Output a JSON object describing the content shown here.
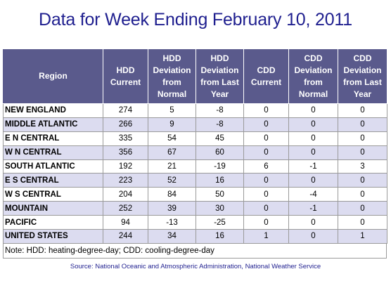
{
  "title": "Data for Week Ending February 10, 2011",
  "table": {
    "headers": [
      "Region",
      "HDD Current",
      "HDD Deviation from Normal",
      "HDD Deviation from Last Year",
      "CDD Current",
      "CDD Deviation from Normal",
      "CDD Deviation from Last Year"
    ],
    "rows": [
      [
        "NEW ENGLAND",
        "274",
        "5",
        "-8",
        "0",
        "0",
        "0"
      ],
      [
        "MIDDLE ATLANTIC",
        "266",
        "9",
        "-8",
        "0",
        "0",
        "0"
      ],
      [
        "E N CENTRAL",
        "335",
        "54",
        "45",
        "0",
        "0",
        "0"
      ],
      [
        "W N CENTRAL",
        "356",
        "67",
        "60",
        "0",
        "0",
        "0"
      ],
      [
        "SOUTH ATLANTIC",
        "192",
        "21",
        "-19",
        "6",
        "-1",
        "3"
      ],
      [
        "E S CENTRAL",
        "223",
        "52",
        "16",
        "0",
        "0",
        "0"
      ],
      [
        "W S CENTRAL",
        "204",
        "84",
        "50",
        "0",
        "-4",
        "0"
      ],
      [
        "MOUNTAIN",
        "252",
        "39",
        "30",
        "0",
        "-1",
        "0"
      ],
      [
        "PACIFIC",
        "94",
        "-13",
        "-25",
        "0",
        "0",
        "0"
      ],
      [
        "UNITED STATES",
        "244",
        "34",
        "16",
        "1",
        "0",
        "1"
      ]
    ],
    "note": "Note: HDD: heating-degree-day; CDD: cooling-degree-day"
  },
  "source": "Source:  National Oceanic and Atmospheric Administration, National Weather Service"
}
